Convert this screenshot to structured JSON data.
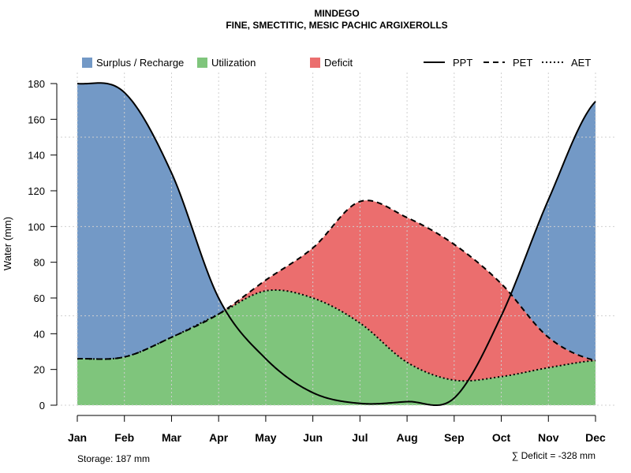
{
  "chart_data": {
    "type": "area",
    "title": "MINDEGO",
    "subtitle": "FINE, SMECTITIC, MESIC PACHIC ARGIXEROLLS",
    "xlabel": "",
    "ylabel": "Water (mm)",
    "ylim": [
      0,
      180
    ],
    "yticks": [
      0,
      20,
      40,
      60,
      80,
      100,
      120,
      140,
      160,
      180
    ],
    "categories": [
      "Jan",
      "Feb",
      "Mar",
      "Apr",
      "May",
      "Jun",
      "Jul",
      "Aug",
      "Sep",
      "Oct",
      "Nov",
      "Dec"
    ],
    "series": [
      {
        "name": "PPT",
        "style": "solid",
        "values": [
          180,
          175,
          130,
          60,
          26,
          7,
          1,
          2,
          4,
          50,
          115,
          170
        ]
      },
      {
        "name": "PET",
        "style": "dashed",
        "values": [
          26,
          27,
          38,
          51,
          70,
          88,
          114,
          105,
          90,
          68,
          38,
          25
        ]
      },
      {
        "name": "AET",
        "style": "dotted",
        "values": [
          26,
          27,
          38,
          51,
          64,
          60,
          46,
          24,
          14,
          16,
          21,
          25
        ]
      }
    ],
    "areas": [
      {
        "name": "Surplus / Recharge",
        "color": "#7399c6"
      },
      {
        "name": "Utilization",
        "color": "#7fc57c"
      },
      {
        "name": "Deficit",
        "color": "#eb6e6e"
      }
    ],
    "legend": {
      "position": "top",
      "items": [
        "Surplus / Recharge",
        "Utilization",
        "Deficit",
        "PPT",
        "PET",
        "AET"
      ]
    },
    "annotations": {
      "storage": "Storage: 187 mm",
      "deficit": "∑ Deficit = -328 mm"
    },
    "grid": true
  }
}
